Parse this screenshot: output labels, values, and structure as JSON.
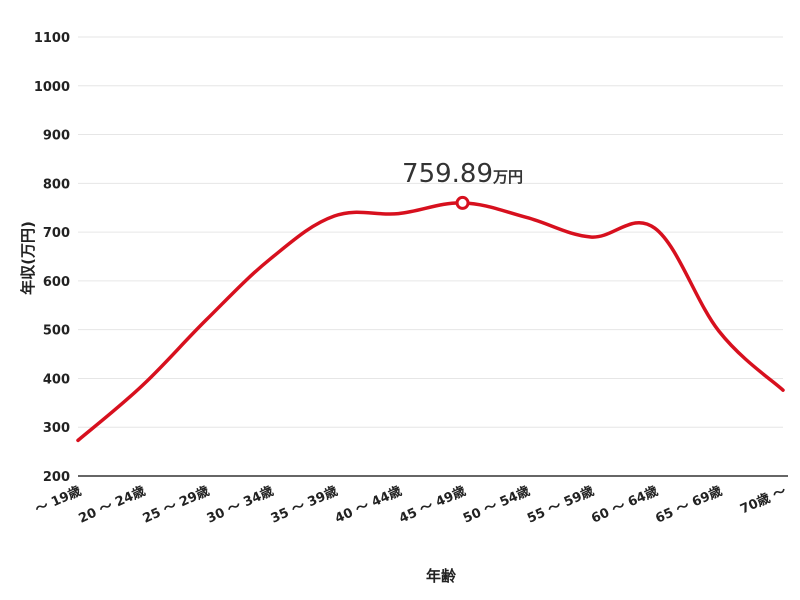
{
  "chart_data": {
    "type": "line",
    "xlabel": "年齢",
    "ylabel": "年収(万円)",
    "ylim": [
      200,
      1100
    ],
    "yticks": [
      200,
      300,
      400,
      500,
      600,
      700,
      800,
      900,
      1000,
      1100
    ],
    "grid": true,
    "categories": [
      "～ 19歳",
      "20 ～ 24歳",
      "25 ～ 29歳",
      "30 ～ 34歳",
      "35 ～ 39歳",
      "40 ～ 44歳",
      "45 ～ 49歳",
      "50 ～ 54歳",
      "55 ～ 59歳",
      "60 ～ 64歳",
      "65 ～ 69歳",
      "70歳 ～"
    ],
    "series": [
      {
        "values": [
          273,
          385,
          520,
          645,
          733,
          738,
          759.89,
          730,
          690,
          708,
          497,
          376
        ],
        "color": "#d7101e"
      }
    ],
    "annotation": {
      "category_index": 6,
      "value": "759.89",
      "unit": "万円"
    }
  }
}
